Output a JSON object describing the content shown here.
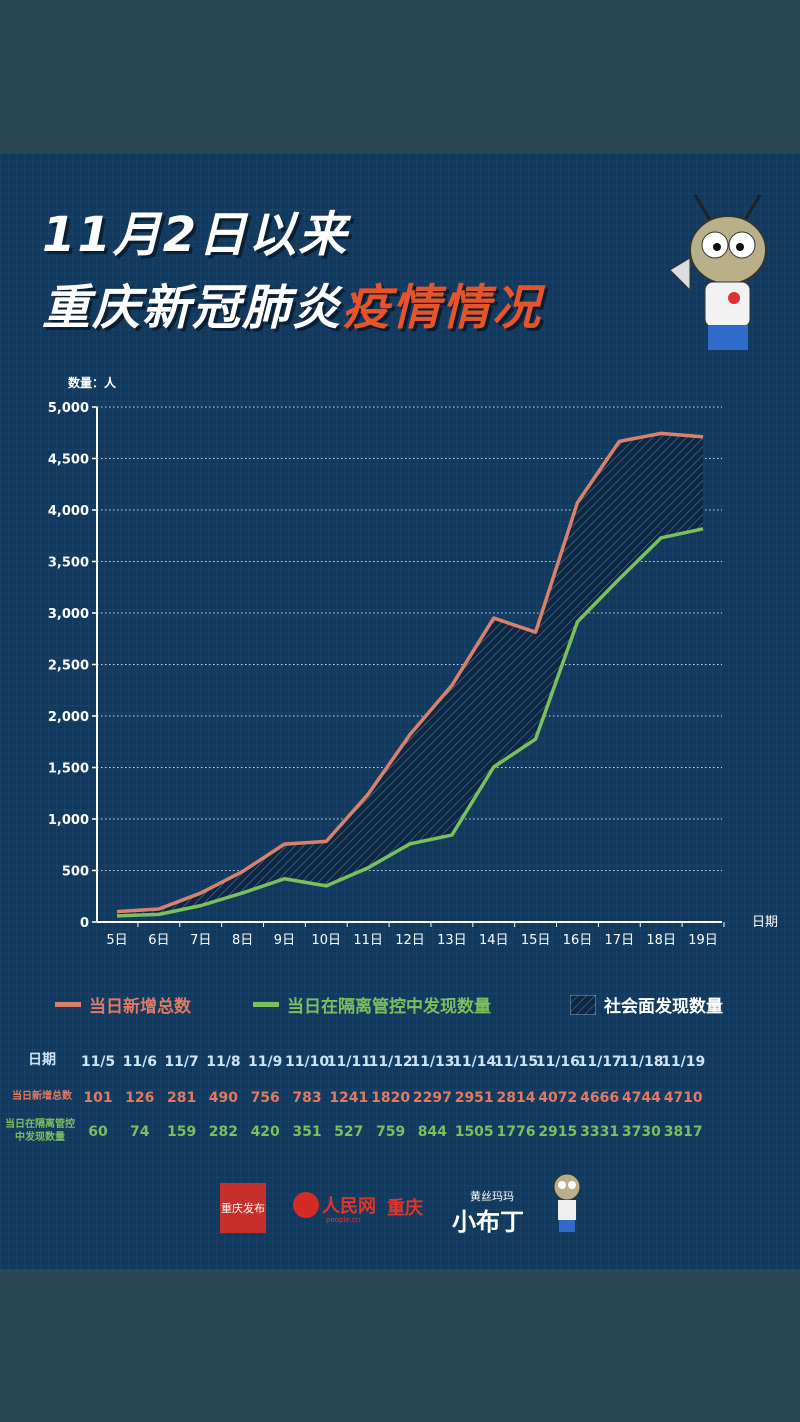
{
  "title": {
    "line1": "11月2日以来",
    "line2_a": "重庆新冠肺炎",
    "line2_b": "疫情情况"
  },
  "chart_data": {
    "type": "area",
    "ylabel": "数量：人",
    "xlabel": "日期",
    "ylim": [
      0,
      5000
    ],
    "yticks": [
      "0",
      "500",
      "1,000",
      "1,500",
      "2,000",
      "2,500",
      "3,000",
      "3,500",
      "4,000",
      "4,500",
      "5,000"
    ],
    "categories": [
      "5日",
      "6日",
      "7日",
      "8日",
      "9日",
      "10日",
      "11日",
      "12日",
      "13日",
      "14日",
      "15日",
      "16日",
      "17日",
      "18日",
      "19日"
    ],
    "grid": "horizontal dotted",
    "legend_position": "bottom",
    "series": [
      {
        "name": "当日新增总数",
        "color": "#d9826b",
        "values": [
          101,
          126,
          281,
          490,
          756,
          783,
          1241,
          1820,
          2297,
          2951,
          2814,
          4072,
          4666,
          4744,
          4710
        ]
      },
      {
        "name": "当日在隔离管控中发现数量",
        "color": "#7bbf5e",
        "values": [
          60,
          74,
          159,
          282,
          420,
          351,
          527,
          759,
          844,
          1505,
          1776,
          2915,
          3331,
          3730,
          3817
        ]
      }
    ],
    "area_name": "社会面发现数量"
  },
  "table": {
    "header_label": "日期",
    "dates": [
      "11/5",
      "11/6",
      "11/7",
      "11/8",
      "11/9",
      "11/10",
      "11/11",
      "11/12",
      "11/13",
      "11/14",
      "11/15",
      "11/16",
      "11/17",
      "11/18",
      "11/19"
    ],
    "row1_label": "当日新增总数",
    "row2_label": "当日在隔离管控中发现数量"
  },
  "logos": {
    "cq_release": "重庆发布",
    "people": "人民网",
    "people_city": "重庆",
    "people_sub": "people.cn",
    "xiaobuding_top": "黄丝玛玛",
    "xiaobuding": "小布丁"
  }
}
